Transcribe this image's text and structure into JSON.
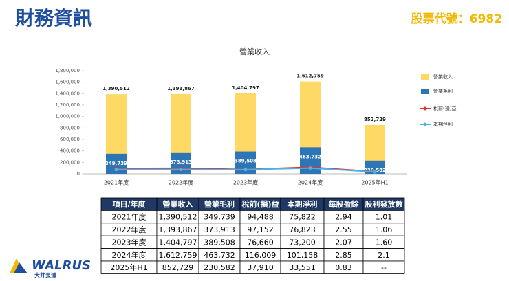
{
  "header": {
    "title": "財務資訊",
    "stock_code": "股票代號：6982"
  },
  "chart_data": {
    "type": "bar",
    "title": "營業收入",
    "categories": [
      "2021年度",
      "2022年度",
      "2023年度",
      "2024年度",
      "2025年H1"
    ],
    "series": [
      {
        "name": "營業收入",
        "color": "#ffd966",
        "kind": "bar",
        "values": [
          1390512,
          1393867,
          1404797,
          1612759,
          852729
        ],
        "value_labels": [
          "1,390,512",
          "1,393,867",
          "1,404,797",
          "1,612,759",
          "852,729"
        ]
      },
      {
        "name": "營業毛利",
        "color": "#2e75b6",
        "kind": "bar",
        "values": [
          349739,
          373913,
          389508,
          463732,
          230582
        ],
        "value_labels": [
          "349,739",
          "373,913",
          "389,508",
          "463,732",
          "230,582"
        ]
      },
      {
        "name": "稅前(損)益",
        "color": "#e03131",
        "kind": "line",
        "values": [
          94488,
          97152,
          76660,
          116009,
          37910
        ]
      },
      {
        "name": "本期淨利",
        "color": "#4ab3e6",
        "kind": "line",
        "values": [
          75822,
          76823,
          73200,
          101158,
          33551
        ]
      }
    ],
    "ylim": [
      0,
      1800000
    ],
    "yticks": [
      0,
      {
        "value": 200000,
        "label": "200,000"
      },
      {
        "value": 400000,
        "label": "400,000"
      },
      {
        "value": 600000,
        "label": "600,000"
      },
      {
        "value": 800000,
        "label": "800,000"
      },
      {
        "value": 1000000,
        "label": "1,000,000"
      },
      {
        "value": 1200000,
        "label": "1,200,000"
      },
      {
        "value": 1400000,
        "label": "1,400,000"
      },
      {
        "value": 1600000,
        "label": "1,600,000"
      },
      {
        "value": 1800000,
        "label": "1,800,000"
      }
    ],
    "grid": false,
    "legend": "right"
  },
  "table": {
    "columns": [
      "項目/年度",
      "營業收入",
      "營業毛利",
      "稅前(損)益",
      "本期淨利",
      "每股盈餘",
      "股利發放數"
    ],
    "rows": [
      [
        "2021年度",
        "1,390,512",
        "349,739",
        "94,488",
        "75,822",
        "2.94",
        "1.01"
      ],
      [
        "2022年度",
        "1,393,867",
        "373,913",
        "97,152",
        "76,823",
        "2.55",
        "1.06"
      ],
      [
        "2023年度",
        "1,404,797",
        "389,508",
        "76,660",
        "73,200",
        "2.07",
        "1.60"
      ],
      [
        "2024年度",
        "1,612,759",
        "463,732",
        "116,009",
        "101,158",
        "2.85",
        "2.1"
      ],
      [
        "2025年H1",
        "852,729",
        "230,582",
        "37,910",
        "33,551",
        "0.83",
        "--"
      ]
    ]
  },
  "logo": {
    "brand": "WALRUS",
    "subtitle": "大井泵浦"
  }
}
